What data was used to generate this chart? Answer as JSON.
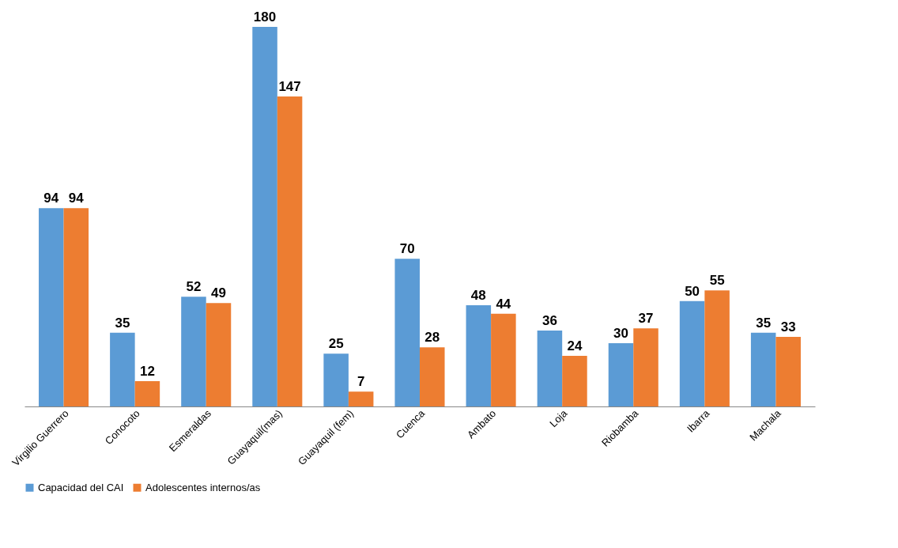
{
  "chart_data": {
    "type": "bar",
    "categories": [
      "Virgilio Guerrero",
      "Conocoto",
      "Esmeraldas",
      "Guayaquil(mas)",
      "Guayaquil (fem)",
      "Cuenca",
      "Ambato",
      "Loja",
      "Riobamba",
      "Ibarra",
      "Machala"
    ],
    "series": [
      {
        "name": "Capacidad del CAI",
        "color": "#5b9bd5",
        "values": [
          94,
          35,
          52,
          180,
          25,
          70,
          48,
          36,
          30,
          50,
          35
        ]
      },
      {
        "name": "Adolescentes internos/as",
        "color": "#ed7d31",
        "values": [
          94,
          12,
          49,
          147,
          7,
          28,
          44,
          24,
          37,
          55,
          33
        ]
      }
    ],
    "data_labels": true,
    "legend": "bottom"
  }
}
